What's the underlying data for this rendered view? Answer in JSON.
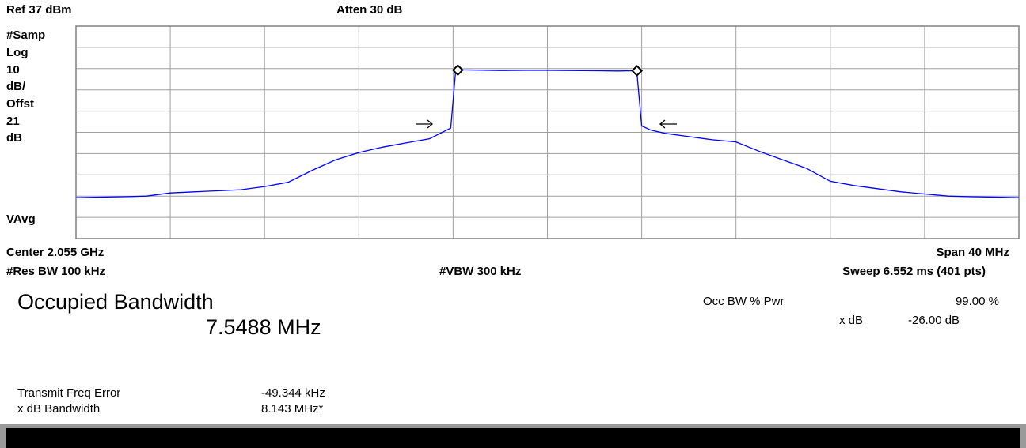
{
  "header": {
    "ref": "Ref 37 dBm",
    "atten": "Atten 30 dB"
  },
  "left_labels": [
    "#Samp",
    "Log",
    "10",
    "dB/",
    "Offst",
    "21",
    "dB"
  ],
  "vavg": "VAvg",
  "footer": {
    "center": "Center 2.055 GHz",
    "span": "Span 40 MHz",
    "res_bw": "#Res BW 100 kHz",
    "vbw": "#VBW 300 kHz",
    "sweep": "Sweep 6.552 ms (401 pts)"
  },
  "results": {
    "title": "Occupied Bandwidth",
    "value": "7.5488 MHz",
    "occ_label": "Occ BW % Pwr",
    "occ_value": "99.00 %",
    "xdb_label": "x dB",
    "xdb_value": "-26.00 dB",
    "tfe_label": "Transmit Freq Error",
    "tfe_value": "-49.344 kHz",
    "xbw_label": "x dB Bandwidth",
    "xbw_value": "8.143 MHz*"
  },
  "chart_data": {
    "type": "line",
    "x": [
      2035,
      2036,
      2037,
      2038,
      2039,
      2040,
      2041,
      2042,
      2043,
      2044,
      2045,
      2046,
      2047,
      2048,
      2049,
      2050,
      2050.9,
      2051.1,
      2051.3,
      2052,
      2053,
      2054,
      2055,
      2056,
      2057,
      2058,
      2058.6,
      2058.8,
      2059,
      2059.4,
      2060,
      2061,
      2062,
      2063,
      2064,
      2065,
      2066,
      2067,
      2068,
      2069,
      2070,
      2071,
      2072,
      2073,
      2074,
      2075
    ],
    "series": [
      {
        "color": "#0000ff",
        "values": [
          -43.7,
          -43.5,
          -43.3,
          -43,
          -41.5,
          -41,
          -40.5,
          -40,
          -38.5,
          -36.5,
          -31,
          -26,
          -22.5,
          -20,
          -18,
          -16,
          -11,
          15,
          16.4,
          16.3,
          16.1,
          16.2,
          16.2,
          16.1,
          16,
          15.9,
          16,
          15,
          -10,
          -12,
          -13.5,
          -15,
          -16.5,
          -17.5,
          -22,
          -26,
          -30,
          -36,
          -38,
          -39.5,
          -41,
          -42,
          -43,
          -43.3,
          -43.5,
          -43.7
        ]
      }
    ],
    "markers": [
      {
        "x": 2051.2,
        "y": 16.3
      },
      {
        "x": 2058.8,
        "y": 16.0
      }
    ],
    "marker_color": "#000000",
    "xlim": [
      2035,
      2075
    ],
    "ylim": [
      -63,
      37
    ],
    "grid": true
  }
}
